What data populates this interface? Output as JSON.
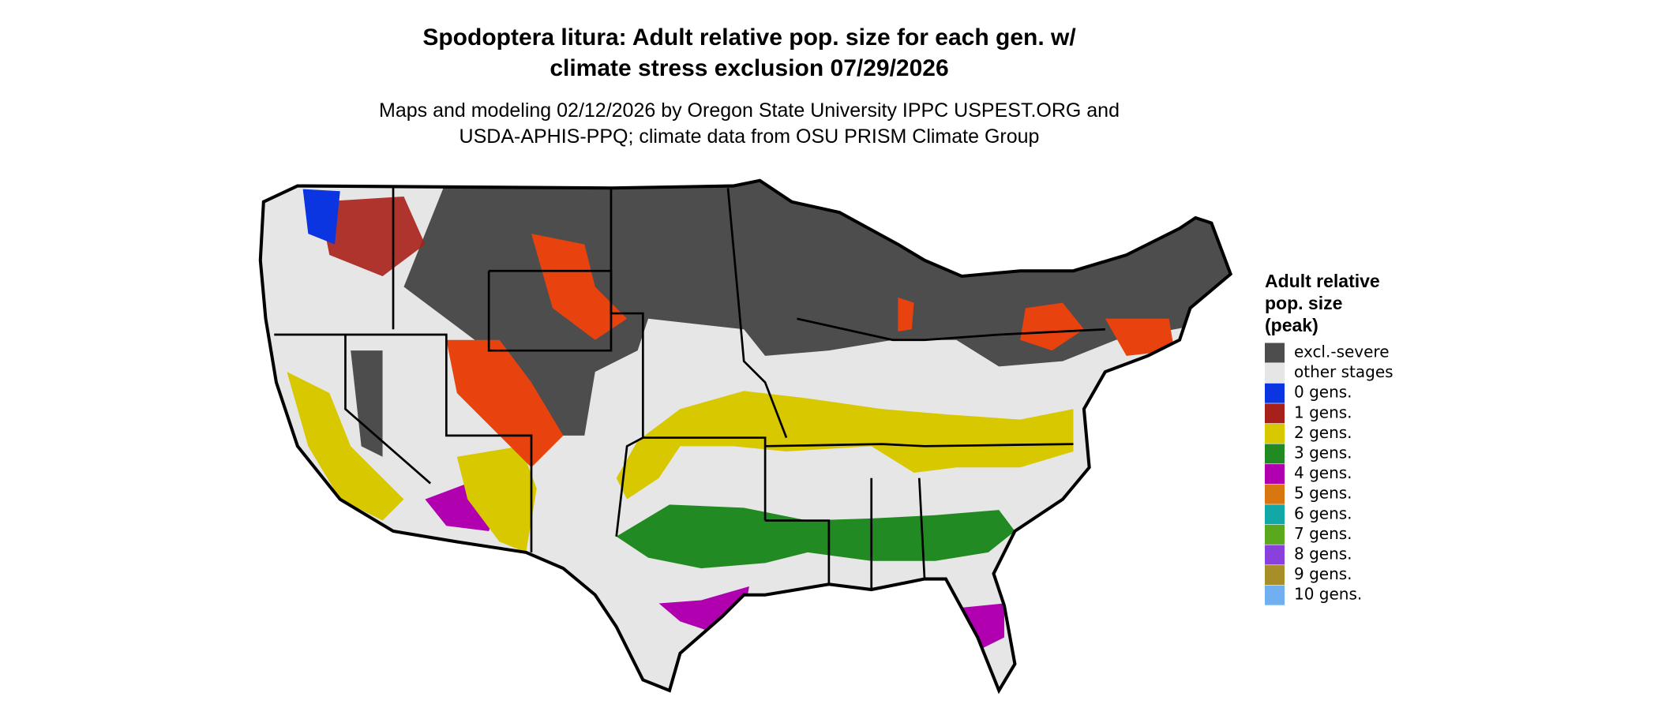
{
  "title": [
    "Spodoptera litura: Adult relative pop. size for each gen. w/",
    "climate stress exclusion 07/29/2026"
  ],
  "subtitle": [
    "Maps and modeling 02/12/2026 by Oregon State University IPPC USPEST.ORG and",
    "USDA-APHIS-PPQ; climate data from OSU PRISM Climate Group"
  ],
  "legend": {
    "title": [
      "Adult relative",
      "pop. size",
      "(peak)"
    ],
    "items": [
      {
        "label": "excl.-severe",
        "color": "#4d4d4d"
      },
      {
        "label": "other stages",
        "color": "#e6e6e6"
      },
      {
        "label": "0 gens.",
        "color": "#0a35e0"
      },
      {
        "label": "1 gens.",
        "color": "#a8201a"
      },
      {
        "label": "2 gens.",
        "color": "#d8c800"
      },
      {
        "label": "3 gens.",
        "color": "#228a22"
      },
      {
        "label": "4 gens.",
        "color": "#b000b0"
      },
      {
        "label": "5 gens.",
        "color": "#d87610"
      },
      {
        "label": "6 gens.",
        "color": "#12a8a8"
      },
      {
        "label": "7 gens.",
        "color": "#5aa81c"
      },
      {
        "label": "8 gens.",
        "color": "#8a40dc"
      },
      {
        "label": "9 gens.",
        "color": "#a88e28"
      },
      {
        "label": "10 gens.",
        "color": "#70b0f0"
      }
    ]
  }
}
